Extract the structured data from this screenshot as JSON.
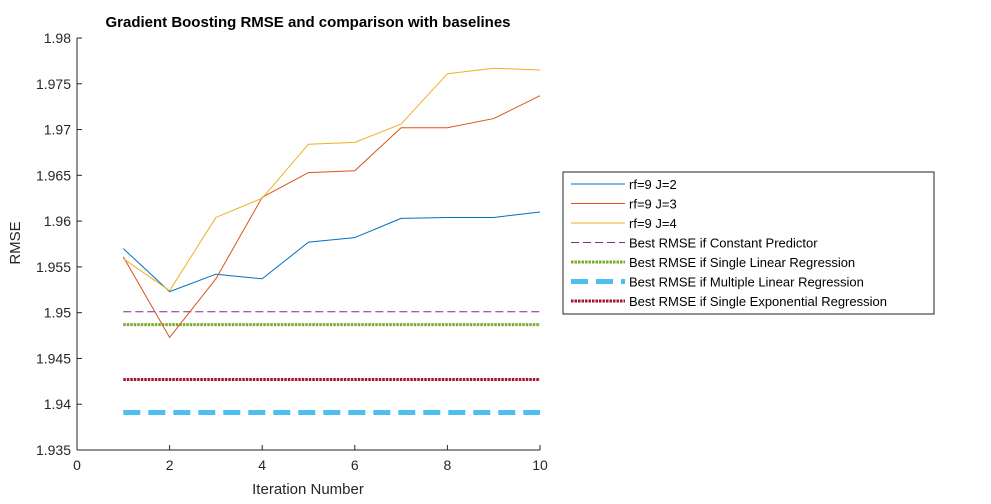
{
  "chart_data": {
    "type": "line",
    "title": "Gradient Boosting RMSE and comparison with baselines",
    "xlabel": "Iteration Number",
    "ylabel": "RMSE",
    "xlim": [
      0,
      10
    ],
    "ylim": [
      1.935,
      1.98
    ],
    "xticks": [
      0,
      2,
      4,
      6,
      8,
      10
    ],
    "xtick_labels": [
      "0",
      "2",
      "4",
      "6",
      "8",
      "10"
    ],
    "yticks": [
      1.935,
      1.94,
      1.945,
      1.95,
      1.955,
      1.96,
      1.965,
      1.97,
      1.975,
      1.98
    ],
    "ytick_labels": [
      "1.935",
      "1.94",
      "1.945",
      "1.95",
      "1.955",
      "1.96",
      "1.965",
      "1.97",
      "1.975",
      "1.98"
    ],
    "grid": false,
    "legend_position": "right",
    "x": [
      1,
      2,
      3,
      4,
      5,
      6,
      7,
      8,
      9,
      10
    ],
    "series": [
      {
        "name": "rf=9 J=2",
        "color": "#0072BD",
        "style": "solid",
        "values": [
          1.957,
          1.9523,
          1.9542,
          1.9537,
          1.9577,
          1.9582,
          1.9603,
          1.9604,
          1.9604,
          1.961
        ]
      },
      {
        "name": "rf=9 J=3",
        "color": "#D95319",
        "style": "solid",
        "values": [
          1.9561,
          1.9473,
          1.9537,
          1.9626,
          1.9653,
          1.9655,
          1.9702,
          1.9702,
          1.9712,
          1.9737
        ]
      },
      {
        "name": "rf=9 J=4",
        "color": "#EDB120",
        "style": "solid",
        "values": [
          1.9559,
          1.9524,
          1.9604,
          1.9625,
          1.9684,
          1.9686,
          1.9706,
          1.9761,
          1.9767,
          1.9765
        ]
      },
      {
        "name": "Best RMSE if Constant Predictor",
        "color": "#7E2F8E",
        "style": "dashed-thin",
        "values": [
          1.9501,
          1.9501,
          1.9501,
          1.9501,
          1.9501,
          1.9501,
          1.9501,
          1.9501,
          1.9501,
          1.9501
        ]
      },
      {
        "name": "Best RMSE if Single Linear Regression",
        "color": "#77AC30",
        "style": "dotted-thick",
        "values": [
          1.9487,
          1.9487,
          1.9487,
          1.9487,
          1.9487,
          1.9487,
          1.9487,
          1.9487,
          1.9487,
          1.9487
        ]
      },
      {
        "name": "Best RMSE if Multiple Linear Regression",
        "color": "#4DBEEE",
        "style": "dashed-thick",
        "values": [
          1.9391,
          1.9391,
          1.9391,
          1.9391,
          1.9391,
          1.9391,
          1.9391,
          1.9391,
          1.9391,
          1.9391
        ]
      },
      {
        "name": "Best RMSE if Single Exponential Regression",
        "color": "#A2142F",
        "style": "dotted-thick",
        "values": [
          1.9427,
          1.9427,
          1.9427,
          1.9427,
          1.9427,
          1.9427,
          1.9427,
          1.9427,
          1.9427,
          1.9427
        ]
      }
    ]
  }
}
